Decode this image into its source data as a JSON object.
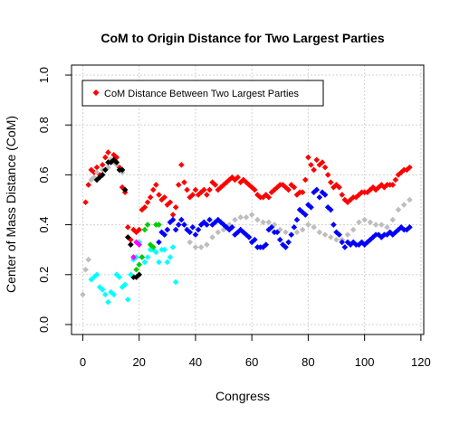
{
  "chart_data": {
    "type": "scatter",
    "title": "CoM to Origin Distance for Two Largest Parties",
    "xlabel": "Congress",
    "ylabel": "Center of Mass Distance (CoM)",
    "xlim": [
      -4,
      121
    ],
    "ylim": [
      -0.04,
      1.04
    ],
    "xticks": [
      0,
      20,
      40,
      60,
      80,
      100,
      120
    ],
    "yticks": [
      0.0,
      0.2,
      0.4,
      0.6,
      0.8,
      1.0
    ],
    "grid": true,
    "legend": {
      "position": "top-left",
      "entries": [
        {
          "label": "CoM Distance Between Two Largest Parties",
          "color": "#ff0000"
        }
      ]
    },
    "series": [
      {
        "color": "#ff0000",
        "points": [
          [
            1,
            0.49
          ],
          [
            2,
            0.56
          ],
          [
            3,
            0.62
          ],
          [
            4,
            0.61
          ],
          [
            5,
            0.63
          ],
          [
            6,
            0.6
          ],
          [
            7,
            0.64
          ],
          [
            8,
            0.67
          ],
          [
            9,
            0.69
          ],
          [
            10,
            0.66
          ],
          [
            11,
            0.68
          ],
          [
            12,
            0.67
          ],
          [
            13,
            0.63
          ],
          [
            14,
            0.55
          ],
          [
            15,
            0.53
          ],
          [
            16,
            0.39
          ],
          [
            17,
            0.34
          ],
          [
            18,
            0.38
          ],
          [
            19,
            0.37
          ],
          [
            20,
            0.38
          ],
          [
            21,
            0.46
          ],
          [
            22,
            0.47
          ],
          [
            23,
            0.49
          ],
          [
            24,
            0.51
          ],
          [
            25,
            0.54
          ],
          [
            26,
            0.56
          ],
          [
            27,
            0.52
          ],
          [
            28,
            0.5
          ],
          [
            29,
            0.51
          ],
          [
            30,
            0.48
          ],
          [
            31,
            0.49
          ],
          [
            32,
            0.44
          ],
          [
            33,
            0.47
          ],
          [
            34,
            0.56
          ],
          [
            35,
            0.64
          ],
          [
            36,
            0.57
          ],
          [
            37,
            0.54
          ],
          [
            38,
            0.51
          ],
          [
            39,
            0.52
          ],
          [
            40,
            0.54
          ],
          [
            41,
            0.52
          ],
          [
            42,
            0.53
          ],
          [
            43,
            0.54
          ],
          [
            44,
            0.52
          ],
          [
            45,
            0.54
          ],
          [
            46,
            0.57
          ],
          [
            47,
            0.56
          ],
          [
            48,
            0.54
          ],
          [
            49,
            0.55
          ],
          [
            50,
            0.56
          ],
          [
            51,
            0.57
          ],
          [
            52,
            0.58
          ],
          [
            53,
            0.59
          ],
          [
            54,
            0.58
          ],
          [
            55,
            0.59
          ],
          [
            56,
            0.57
          ],
          [
            57,
            0.58
          ],
          [
            58,
            0.57
          ],
          [
            59,
            0.56
          ],
          [
            60,
            0.55
          ],
          [
            61,
            0.54
          ],
          [
            62,
            0.52
          ],
          [
            63,
            0.51
          ],
          [
            64,
            0.51
          ],
          [
            65,
            0.52
          ],
          [
            66,
            0.51
          ],
          [
            67,
            0.53
          ],
          [
            68,
            0.54
          ],
          [
            69,
            0.55
          ],
          [
            70,
            0.56
          ],
          [
            71,
            0.56
          ],
          [
            72,
            0.55
          ],
          [
            73,
            0.54
          ],
          [
            74,
            0.56
          ],
          [
            75,
            0.55
          ],
          [
            76,
            0.52
          ],
          [
            77,
            0.53
          ],
          [
            78,
            0.53
          ],
          [
            79,
            0.58
          ],
          [
            80,
            0.67
          ],
          [
            81,
            0.64
          ],
          [
            82,
            0.62
          ],
          [
            83,
            0.66
          ],
          [
            84,
            0.64
          ],
          [
            85,
            0.65
          ],
          [
            86,
            0.63
          ],
          [
            87,
            0.6
          ],
          [
            88,
            0.57
          ],
          [
            89,
            0.55
          ],
          [
            90,
            0.56
          ],
          [
            91,
            0.55
          ],
          [
            92,
            0.52
          ],
          [
            93,
            0.5
          ],
          [
            94,
            0.49
          ],
          [
            95,
            0.5
          ],
          [
            96,
            0.51
          ],
          [
            97,
            0.51
          ],
          [
            98,
            0.52
          ],
          [
            99,
            0.53
          ],
          [
            100,
            0.53
          ],
          [
            101,
            0.53
          ],
          [
            102,
            0.54
          ],
          [
            103,
            0.55
          ],
          [
            104,
            0.54
          ],
          [
            105,
            0.55
          ],
          [
            106,
            0.56
          ],
          [
            107,
            0.55
          ],
          [
            108,
            0.56
          ],
          [
            109,
            0.56
          ],
          [
            110,
            0.56
          ],
          [
            111,
            0.58
          ],
          [
            112,
            0.6
          ],
          [
            113,
            0.61
          ],
          [
            114,
            0.62
          ],
          [
            115,
            0.62
          ],
          [
            116,
            0.63
          ]
        ]
      },
      {
        "color": "#bebebe",
        "points": [
          [
            0,
            0.12
          ],
          [
            1,
            0.22
          ],
          [
            2,
            0.26
          ],
          [
            3,
            0.58
          ],
          [
            4,
            0.59
          ],
          [
            5,
            0.61
          ],
          [
            7,
            0.62
          ],
          [
            9,
            0.63
          ],
          [
            10,
            0.66
          ],
          [
            11,
            0.65
          ],
          [
            12,
            0.64
          ],
          [
            13,
            0.62
          ],
          [
            14,
            0.61
          ],
          [
            60,
            0.44
          ],
          [
            62,
            0.42
          ],
          [
            64,
            0.41
          ],
          [
            66,
            0.41
          ],
          [
            68,
            0.4
          ],
          [
            70,
            0.38
          ],
          [
            72,
            0.37
          ],
          [
            74,
            0.36
          ],
          [
            76,
            0.37
          ],
          [
            78,
            0.38
          ],
          [
            80,
            0.4
          ],
          [
            82,
            0.39
          ],
          [
            84,
            0.37
          ],
          [
            86,
            0.36
          ],
          [
            88,
            0.35
          ],
          [
            90,
            0.34
          ],
          [
            92,
            0.34
          ],
          [
            94,
            0.36
          ],
          [
            96,
            0.38
          ],
          [
            98,
            0.41
          ],
          [
            100,
            0.42
          ],
          [
            102,
            0.41
          ],
          [
            104,
            0.4
          ],
          [
            106,
            0.4
          ],
          [
            108,
            0.39
          ],
          [
            110,
            0.42
          ],
          [
            112,
            0.46
          ],
          [
            114,
            0.48
          ],
          [
            116,
            0.5
          ],
          [
            38,
            0.33
          ],
          [
            40,
            0.31
          ],
          [
            42,
            0.31
          ],
          [
            44,
            0.32
          ],
          [
            46,
            0.35
          ],
          [
            48,
            0.37
          ],
          [
            50,
            0.38
          ],
          [
            52,
            0.4
          ],
          [
            54,
            0.42
          ],
          [
            56,
            0.43
          ],
          [
            58,
            0.43
          ]
        ]
      },
      {
        "color": "#000000",
        "points": [
          [
            5,
            0.58
          ],
          [
            6,
            0.59
          ],
          [
            7,
            0.6
          ],
          [
            8,
            0.62
          ],
          [
            9,
            0.65
          ],
          [
            10,
            0.65
          ],
          [
            11,
            0.66
          ],
          [
            12,
            0.65
          ],
          [
            13,
            0.62
          ],
          [
            14,
            0.62
          ],
          [
            15,
            0.54
          ],
          [
            16,
            0.35
          ],
          [
            17,
            0.32
          ],
          [
            18,
            0.19
          ],
          [
            19,
            0.19
          ],
          [
            20,
            0.2
          ]
        ]
      },
      {
        "color": "#00ffff",
        "points": [
          [
            3,
            0.18
          ],
          [
            4,
            0.19
          ],
          [
            5,
            0.2
          ],
          [
            6,
            0.15
          ],
          [
            7,
            0.14
          ],
          [
            8,
            0.12
          ],
          [
            9,
            0.09
          ],
          [
            10,
            0.13
          ],
          [
            11,
            0.12
          ],
          [
            12,
            0.2
          ],
          [
            13,
            0.19
          ],
          [
            14,
            0.15
          ],
          [
            15,
            0.16
          ],
          [
            16,
            0.1
          ],
          [
            17,
            0.2
          ],
          [
            18,
            0.26
          ],
          [
            19,
            0.27
          ],
          [
            20,
            0.33
          ],
          [
            22,
            0.25
          ],
          [
            23,
            0.27
          ],
          [
            24,
            0.3
          ],
          [
            25,
            0.3
          ],
          [
            26,
            0.29
          ],
          [
            27,
            0.25
          ],
          [
            28,
            0.3
          ],
          [
            29,
            0.3
          ],
          [
            30,
            0.25
          ],
          [
            31,
            0.27
          ],
          [
            32,
            0.31
          ],
          [
            33,
            0.17
          ]
        ]
      },
      {
        "color": "#ff00ff",
        "points": [
          [
            18,
            0.27
          ],
          [
            19,
            0.33
          ],
          [
            20,
            0.32
          ],
          [
            21,
            0.27
          ]
        ]
      },
      {
        "color": "#00cd00",
        "points": [
          [
            19,
            0.22
          ],
          [
            20,
            0.24
          ],
          [
            21,
            0.27
          ],
          [
            22,
            0.38
          ],
          [
            23,
            0.4
          ],
          [
            24,
            0.32
          ],
          [
            25,
            0.31
          ],
          [
            26,
            0.4
          ],
          [
            27,
            0.4
          ]
        ]
      },
      {
        "color": "#0000ff",
        "points": [
          [
            27,
            0.33
          ],
          [
            28,
            0.37
          ],
          [
            29,
            0.36
          ],
          [
            30,
            0.38
          ],
          [
            31,
            0.41
          ],
          [
            32,
            0.42
          ],
          [
            33,
            0.38
          ],
          [
            34,
            0.4
          ],
          [
            35,
            0.42
          ],
          [
            36,
            0.4
          ],
          [
            37,
            0.38
          ],
          [
            38,
            0.37
          ],
          [
            39,
            0.39
          ],
          [
            40,
            0.36
          ],
          [
            41,
            0.38
          ],
          [
            42,
            0.4
          ],
          [
            43,
            0.41
          ],
          [
            44,
            0.4
          ],
          [
            45,
            0.42
          ],
          [
            46,
            0.4
          ],
          [
            47,
            0.41
          ],
          [
            48,
            0.42
          ],
          [
            49,
            0.41
          ],
          [
            50,
            0.4
          ],
          [
            51,
            0.39
          ],
          [
            52,
            0.38
          ],
          [
            53,
            0.39
          ],
          [
            54,
            0.36
          ],
          [
            55,
            0.37
          ],
          [
            56,
            0.38
          ],
          [
            57,
            0.37
          ],
          [
            58,
            0.36
          ],
          [
            59,
            0.35
          ],
          [
            60,
            0.33
          ],
          [
            61,
            0.34
          ],
          [
            62,
            0.31
          ],
          [
            63,
            0.31
          ],
          [
            64,
            0.31
          ],
          [
            65,
            0.32
          ],
          [
            66,
            0.38
          ],
          [
            67,
            0.39
          ],
          [
            68,
            0.37
          ],
          [
            69,
            0.37
          ],
          [
            70,
            0.34
          ],
          [
            71,
            0.32
          ],
          [
            72,
            0.31
          ],
          [
            73,
            0.33
          ],
          [
            74,
            0.36
          ],
          [
            75,
            0.39
          ],
          [
            76,
            0.42
          ],
          [
            77,
            0.46
          ],
          [
            78,
            0.45
          ],
          [
            79,
            0.44
          ],
          [
            80,
            0.48
          ],
          [
            81,
            0.47
          ],
          [
            82,
            0.53
          ],
          [
            83,
            0.54
          ],
          [
            84,
            0.51
          ],
          [
            85,
            0.53
          ],
          [
            86,
            0.52
          ],
          [
            87,
            0.47
          ],
          [
            88,
            0.46
          ],
          [
            89,
            0.4
          ],
          [
            90,
            0.37
          ],
          [
            91,
            0.36
          ],
          [
            92,
            0.33
          ],
          [
            93,
            0.31
          ],
          [
            94,
            0.33
          ],
          [
            95,
            0.32
          ],
          [
            96,
            0.33
          ],
          [
            97,
            0.32
          ],
          [
            98,
            0.32
          ],
          [
            99,
            0.33
          ],
          [
            100,
            0.32
          ],
          [
            101,
            0.33
          ],
          [
            102,
            0.34
          ],
          [
            103,
            0.35
          ],
          [
            104,
            0.36
          ],
          [
            105,
            0.36
          ],
          [
            106,
            0.35
          ],
          [
            107,
            0.36
          ],
          [
            108,
            0.36
          ],
          [
            109,
            0.37
          ],
          [
            110,
            0.36
          ],
          [
            111,
            0.37
          ],
          [
            112,
            0.38
          ],
          [
            113,
            0.39
          ],
          [
            114,
            0.38
          ],
          [
            115,
            0.38
          ],
          [
            116,
            0.39
          ]
        ]
      }
    ]
  }
}
